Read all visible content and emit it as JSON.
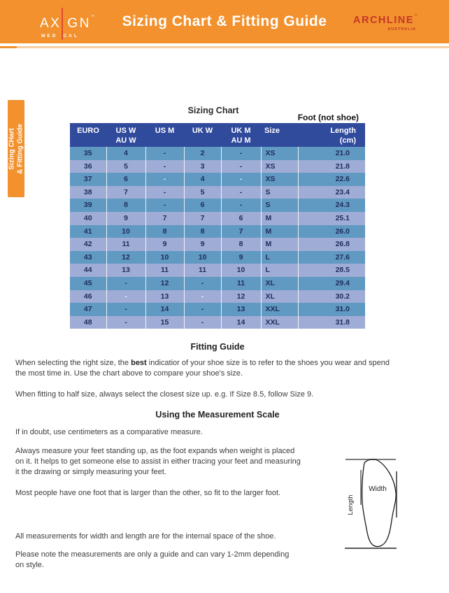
{
  "header": {
    "logo_axign": {
      "part1": "AX",
      "part2": "GN",
      "tm": "™",
      "sub1": "MED",
      "sub2": "CAL"
    },
    "title": "Sizing Chart & Fitting Guide",
    "logo_archline": {
      "name": "ARCHLINE",
      "tm": "™",
      "sub": "AUSTRALIA"
    }
  },
  "side_tab": {
    "text": "Sizing CHart\n& Fitting Guide"
  },
  "sizing_chart": {
    "title": "Sizing Chart",
    "foot_note": "Foot (not shoe)",
    "columns": [
      {
        "l1": "EURO",
        "l2": ""
      },
      {
        "l1": "US W",
        "l2": "AU W"
      },
      {
        "l1": "US M",
        "l2": ""
      },
      {
        "l1": "UK W",
        "l2": ""
      },
      {
        "l1": "UK M",
        "l2": "AU M"
      },
      {
        "l1": "Size",
        "l2": ""
      },
      {
        "l1": "Length",
        "l2": "(cm)"
      }
    ],
    "rows": [
      {
        "cells": [
          "35",
          "4",
          "-",
          "2",
          "-",
          "XS",
          "21.0"
        ]
      },
      {
        "cells": [
          "36",
          "5",
          "-",
          "3",
          "-",
          "XS",
          "21.8"
        ]
      },
      {
        "cells": [
          "37",
          "6",
          "-",
          "4",
          "-",
          "XS",
          "22.6"
        ],
        "muted": [
          2,
          4
        ]
      },
      {
        "cells": [
          "38",
          "7",
          "-",
          "5",
          "-",
          "S",
          "23.4"
        ]
      },
      {
        "cells": [
          "39",
          "8",
          "-",
          "6",
          "-",
          "S",
          "24.3"
        ]
      },
      {
        "cells": [
          "40",
          "9",
          "7",
          "7",
          "6",
          "M",
          "25.1"
        ]
      },
      {
        "cells": [
          "41",
          "10",
          "8",
          "8",
          "7",
          "M",
          "26.0"
        ]
      },
      {
        "cells": [
          "42",
          "11",
          "9",
          "9",
          "8",
          "M",
          "26.8"
        ]
      },
      {
        "cells": [
          "43",
          "12",
          "10",
          "10",
          "9",
          "L",
          "27.6"
        ]
      },
      {
        "cells": [
          "44",
          "13",
          "11",
          "11",
          "10",
          "L",
          "28.5"
        ]
      },
      {
        "cells": [
          "45",
          "-",
          "12",
          "-",
          "11",
          "XL",
          "29.4"
        ]
      },
      {
        "cells": [
          "46",
          "-",
          "13",
          "-",
          "12",
          "XL",
          "30.2"
        ],
        "muted": [
          1,
          3
        ]
      },
      {
        "cells": [
          "47",
          "-",
          "14",
          "-",
          "13",
          "XXL",
          "31.0"
        ]
      },
      {
        "cells": [
          "48",
          "-",
          "15",
          "-",
          "14",
          "XXL",
          "31.8"
        ]
      }
    ]
  },
  "fitting_guide": {
    "heading": "Fitting Guide",
    "p1_before": "When selecting the right size, the ",
    "p1_bold": "best",
    "p1_after": " indicatior of your shoe size is to refer to the shoes you wear and spend\nthe most time in. Use the chart above to compare your shoe's size.",
    "p2": "When fitting to half size, always select the closest size up. e.g. If Size 8.5, follow Size 9."
  },
  "measurement": {
    "heading": "Using the Measurement Scale",
    "p1": "If in doubt, use centimeters as a comparative measure.",
    "p2": "Always measure your feet standing up, as the foot expands when weight is placed\non it. It helps to get someone else to assist in either tracing your feet and measuring\nit the drawing or simply measuring your feet.",
    "p3": "Most people have one foot that is larger than the other, so fit to the larger foot.",
    "p4": "All measurements for width and length are for the internal space of the shoe.",
    "p5": "Please note the measurements are only a guide and can vary 1-2mm depending\non style."
  },
  "diagram": {
    "width_label": "Width",
    "length_label": "Length"
  },
  "colors": {
    "brand_orange": "#F2912D",
    "brand_red": "#D6392C",
    "table_header_navy": "#304A9C",
    "row_steel_blue": "#6099C1",
    "row_lavender": "#9FACD6",
    "cell_text_navy": "#1F2D5C"
  }
}
